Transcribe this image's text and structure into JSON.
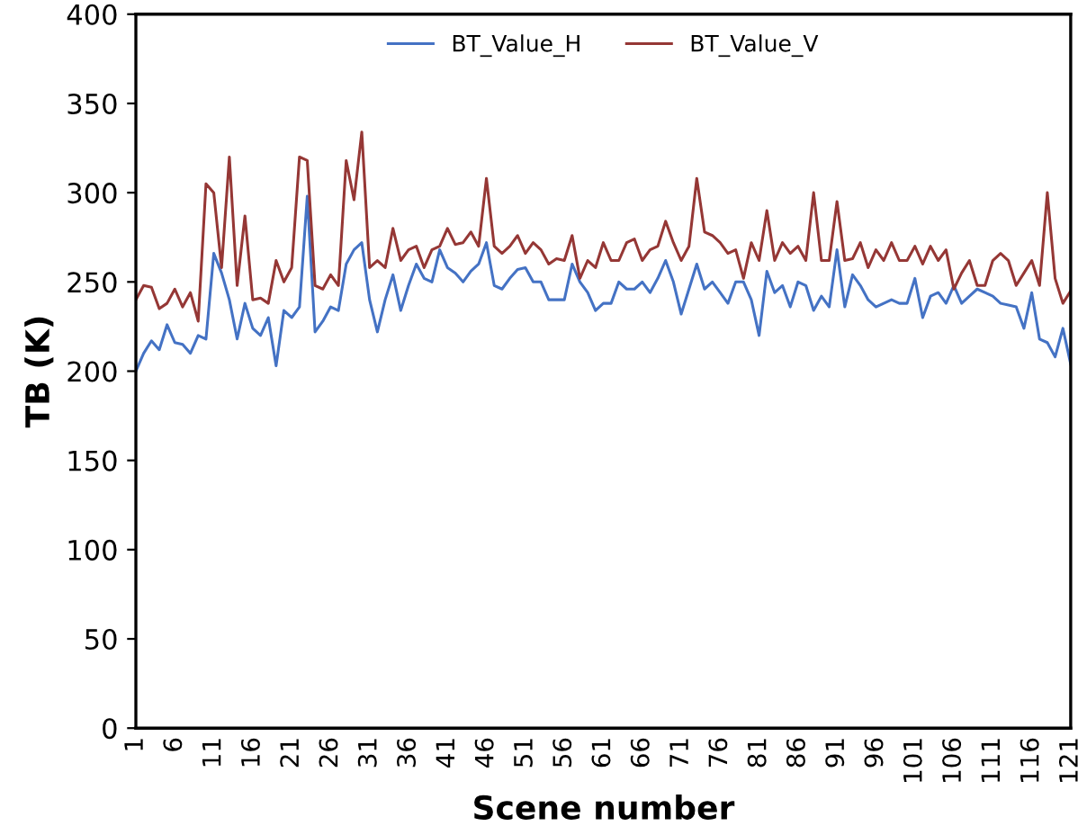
{
  "chart_data": {
    "type": "line",
    "xlabel": "Scene number",
    "ylabel": "TB (K)",
    "categories": [
      "1",
      null,
      null,
      null,
      null,
      "6",
      null,
      null,
      null,
      null,
      "11",
      null,
      null,
      null,
      null,
      "16",
      null,
      null,
      null,
      null,
      "21",
      null,
      null,
      null,
      null,
      "26",
      null,
      null,
      null,
      null,
      "31",
      null,
      null,
      null,
      null,
      "36",
      null,
      null,
      null,
      null,
      "41",
      null,
      null,
      null,
      null,
      "46",
      null,
      null,
      null,
      null,
      "51",
      null,
      null,
      null,
      null,
      "56",
      null,
      null,
      null,
      null,
      "61",
      null,
      null,
      null,
      null,
      "66",
      null,
      null,
      null,
      null,
      "71",
      null,
      null,
      null,
      null,
      "76",
      null,
      null,
      null,
      null,
      "81",
      null,
      null,
      null,
      null,
      "86",
      null,
      null,
      null,
      null,
      "91",
      null,
      null,
      null,
      null,
      "96",
      null,
      null,
      null,
      null,
      "101",
      null,
      null,
      null,
      null,
      "106",
      null,
      null,
      null,
      null,
      "111",
      null,
      null,
      null,
      null,
      "116",
      null,
      null,
      null,
      null,
      "121"
    ],
    "series": [
      {
        "name": "BT_Value_H",
        "color": "#4472c4",
        "values": [
          200,
          210,
          217,
          212,
          226,
          216,
          215,
          210,
          220,
          218,
          266,
          255,
          240,
          218,
          238,
          224,
          220,
          230,
          203,
          234,
          230,
          236,
          298,
          222,
          228,
          236,
          234,
          260,
          268,
          272,
          240,
          222,
          240,
          254,
          234,
          248,
          260,
          252,
          250,
          268,
          258,
          255,
          250,
          256,
          260,
          272,
          248,
          246,
          252,
          257,
          258,
          250,
          250,
          240,
          240,
          240,
          260,
          250,
          244,
          234,
          238,
          238,
          250,
          246,
          246,
          250,
          244,
          252,
          262,
          250,
          232,
          246,
          260,
          246,
          250,
          244,
          238,
          250,
          250,
          240,
          220,
          256,
          244,
          248,
          236,
          250,
          248,
          234,
          242,
          236,
          268,
          236,
          254,
          248,
          240,
          236,
          238,
          240,
          238,
          238,
          252,
          230,
          242,
          244,
          238,
          248,
          238,
          242,
          246,
          244,
          242,
          238,
          237,
          236,
          224,
          244,
          218,
          216,
          208,
          224,
          204
        ]
      },
      {
        "name": "BT_Value_V",
        "color": "#953735",
        "values": [
          240,
          248,
          247,
          235,
          238,
          246,
          236,
          244,
          228,
          305,
          300,
          258,
          320,
          248,
          287,
          240,
          241,
          238,
          262,
          250,
          258,
          320,
          318,
          248,
          246,
          254,
          248,
          318,
          296,
          334,
          258,
          262,
          258,
          280,
          262,
          268,
          270,
          258,
          268,
          270,
          280,
          271,
          272,
          278,
          270,
          308,
          270,
          266,
          270,
          276,
          266,
          272,
          268,
          260,
          263,
          262,
          276,
          252,
          262,
          258,
          272,
          262,
          262,
          272,
          274,
          262,
          268,
          270,
          284,
          272,
          262,
          270,
          308,
          278,
          276,
          272,
          266,
          268,
          252,
          272,
          262,
          290,
          262,
          272,
          266,
          270,
          262,
          300,
          262,
          262,
          295,
          262,
          263,
          272,
          258,
          268,
          262,
          272,
          262,
          262,
          270,
          260,
          270,
          262,
          268,
          246,
          255,
          262,
          248,
          248,
          262,
          266,
          262,
          248,
          255,
          262,
          248,
          300,
          252,
          238,
          245
        ]
      }
    ],
    "ylim": [
      0,
      400
    ],
    "yticks": [
      0,
      50,
      100,
      150,
      200,
      250,
      300,
      350,
      400
    ],
    "grid": false,
    "legend": "top",
    "marker": "none",
    "line_style": "solid"
  }
}
